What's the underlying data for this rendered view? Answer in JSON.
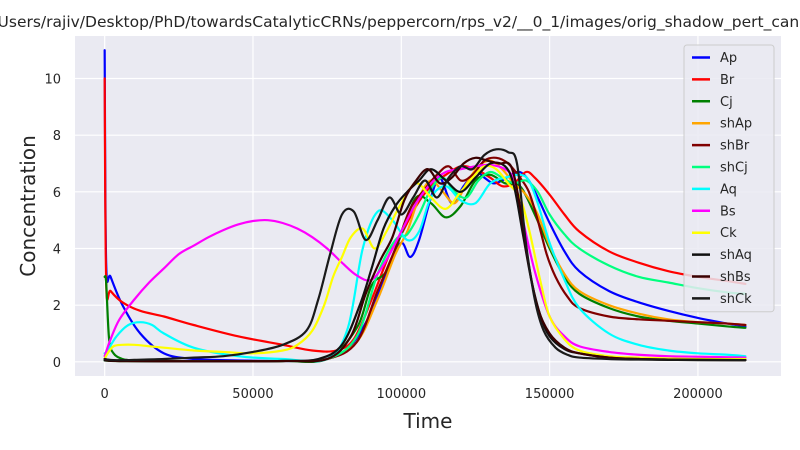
{
  "chart_data": {
    "type": "line",
    "title": "/Users/rajiv/Desktop/PhD/towardsCatalyticCRNs/peppercorn/rps_v2/__0_1/images/orig_shadow_pert_canc",
    "xlabel": "Time",
    "ylabel": "Concentration",
    "xlim": [
      -10000,
      228000
    ],
    "ylim": [
      -0.5,
      11.5
    ],
    "xticks": [
      0,
      50000,
      100000,
      150000,
      200000
    ],
    "xtick_labels": [
      "0",
      "50000",
      "100000",
      "150000",
      "200000"
    ],
    "yticks": [
      0,
      2,
      4,
      6,
      8,
      10
    ],
    "ytick_labels": [
      "0",
      "2",
      "4",
      "6",
      "8",
      "10"
    ],
    "grid": true,
    "legend_position": "top-right",
    "series": [
      {
        "name": "Ap",
        "color": "#0000ff",
        "x": [
          0,
          500,
          2000,
          6000,
          12000,
          20000,
          30000,
          45000,
          60000,
          70000,
          78000,
          84000,
          90000,
          96000,
          100000,
          103000,
          106000,
          110000,
          113000,
          117000,
          121000,
          125000,
          128000,
          131000,
          134000,
          137000,
          140000,
          143000,
          146000,
          150000,
          155000,
          160000,
          170000,
          180000,
          190000,
          200000,
          210000,
          216000
        ],
        "y": [
          11.0,
          3.5,
          3.0,
          2.0,
          1.0,
          0.3,
          0.1,
          0.05,
          0.03,
          0.05,
          0.2,
          0.7,
          1.8,
          3.4,
          4.2,
          3.7,
          4.3,
          5.8,
          6.5,
          5.6,
          6.2,
          6.7,
          6.5,
          6.3,
          6.4,
          6.6,
          6.7,
          6.4,
          5.8,
          4.9,
          3.9,
          3.2,
          2.5,
          2.1,
          1.8,
          1.55,
          1.35,
          1.25
        ]
      },
      {
        "name": "Br",
        "color": "#ff0000",
        "x": [
          0,
          500,
          2000,
          6000,
          12000,
          20000,
          30000,
          45000,
          60000,
          70000,
          78000,
          84000,
          90000,
          96000,
          100000,
          105000,
          110000,
          115000,
          120000,
          125000,
          130000,
          134000,
          138000,
          142000,
          145000,
          150000,
          155000,
          160000,
          170000,
          180000,
          190000,
          200000,
          210000,
          216000
        ],
        "y": [
          10.0,
          2.8,
          2.5,
          2.1,
          1.8,
          1.6,
          1.3,
          0.9,
          0.6,
          0.4,
          0.4,
          0.8,
          2.2,
          3.8,
          4.5,
          5.5,
          6.2,
          6.6,
          6.9,
          6.8,
          6.5,
          6.2,
          6.3,
          6.7,
          6.5,
          5.9,
          5.2,
          4.6,
          3.9,
          3.5,
          3.2,
          3.0,
          2.85,
          2.75
        ]
      },
      {
        "name": "Cj",
        "color": "#008000",
        "x": [
          0,
          500,
          1500,
          3000,
          6000,
          10000,
          20000,
          40000,
          60000,
          75000,
          85000,
          90000,
          95000,
          100000,
          105000,
          110000,
          115000,
          120000,
          125000,
          130000,
          135000,
          140000,
          145000,
          150000,
          155000,
          160000,
          170000,
          180000,
          190000,
          200000,
          210000,
          216000
        ],
        "y": [
          3.0,
          2.8,
          0.8,
          0.3,
          0.1,
          0.05,
          0.03,
          0.02,
          0.03,
          0.1,
          1.2,
          2.7,
          3.2,
          4.5,
          5.8,
          5.6,
          5.1,
          5.5,
          6.4,
          6.6,
          6.3,
          6.2,
          5.2,
          4.0,
          3.0,
          2.4,
          1.9,
          1.6,
          1.45,
          1.35,
          1.25,
          1.2
        ]
      },
      {
        "name": "shAp",
        "color": "#ffa500",
        "x": [
          0,
          1000,
          5000,
          20000,
          40000,
          60000,
          75000,
          85000,
          92000,
          98000,
          102000,
          106000,
          110000,
          114000,
          118000,
          122000,
          126000,
          130000,
          134000,
          138000,
          142000,
          146000,
          150000,
          155000,
          160000,
          170000,
          180000,
          190000,
          200000,
          210000,
          216000
        ],
        "y": [
          0.05,
          0.04,
          0.03,
          0.02,
          0.02,
          0.03,
          0.1,
          0.7,
          2.2,
          3.8,
          4.6,
          5.8,
          6.4,
          6.0,
          5.6,
          6.3,
          6.9,
          7.1,
          6.8,
          6.3,
          5.9,
          5.2,
          4.1,
          3.1,
          2.5,
          2.0,
          1.7,
          1.5,
          1.4,
          1.35,
          1.3
        ]
      },
      {
        "name": "shBr",
        "color": "#800000",
        "x": [
          0,
          1000,
          5000,
          20000,
          40000,
          60000,
          75000,
          85000,
          92000,
          98000,
          103000,
          108000,
          112000,
          116000,
          120000,
          124000,
          128000,
          132000,
          136000,
          140000,
          143000,
          146000,
          149000,
          152000,
          156000,
          160000,
          170000,
          180000,
          190000,
          200000,
          210000,
          216000
        ],
        "y": [
          0.1,
          0.05,
          0.03,
          0.02,
          0.02,
          0.03,
          0.1,
          0.7,
          2.5,
          4.0,
          5.4,
          6.1,
          6.6,
          6.9,
          6.4,
          6.6,
          7.1,
          7.2,
          7.0,
          6.5,
          6.0,
          5.0,
          3.8,
          3.0,
          2.3,
          1.9,
          1.6,
          1.5,
          1.45,
          1.4,
          1.35,
          1.3
        ]
      },
      {
        "name": "shCj",
        "color": "#00ff7f",
        "x": [
          0,
          1000,
          5000,
          20000,
          40000,
          60000,
          75000,
          85000,
          92000,
          98000,
          102000,
          106000,
          110000,
          114000,
          118000,
          122000,
          126000,
          130000,
          134000,
          138000,
          142000,
          146000,
          150000,
          155000,
          160000,
          170000,
          180000,
          190000,
          200000,
          210000,
          216000
        ],
        "y": [
          0.05,
          0.04,
          0.03,
          0.02,
          0.02,
          0.03,
          0.1,
          0.9,
          3.1,
          4.3,
          4.5,
          5.2,
          6.1,
          6.5,
          6.0,
          5.8,
          6.4,
          6.7,
          6.5,
          6.3,
          6.4,
          6.0,
          5.2,
          4.5,
          4.0,
          3.4,
          3.0,
          2.8,
          2.6,
          2.45,
          2.4
        ]
      },
      {
        "name": "Aq",
        "color": "#00ffff",
        "x": [
          0,
          1000,
          4000,
          8000,
          12000,
          16000,
          20000,
          30000,
          45000,
          60000,
          75000,
          82000,
          87000,
          92000,
          97000,
          102000,
          106000,
          110000,
          115000,
          120000,
          125000,
          130000,
          135000,
          140000,
          143000,
          146000,
          150000,
          155000,
          160000,
          170000,
          180000,
          190000,
          200000,
          210000,
          216000
        ],
        "y": [
          0.3,
          0.4,
          0.9,
          1.3,
          1.4,
          1.3,
          1.0,
          0.5,
          0.2,
          0.1,
          0.1,
          1.2,
          4.0,
          5.3,
          5.0,
          4.3,
          4.6,
          5.8,
          6.2,
          5.7,
          5.6,
          6.3,
          6.5,
          6.6,
          6.4,
          5.6,
          4.2,
          2.9,
          1.9,
          1.0,
          0.6,
          0.4,
          0.3,
          0.25,
          0.2
        ]
      },
      {
        "name": "Bs",
        "color": "#ff00ff",
        "x": [
          0,
          2000,
          5000,
          10000,
          15000,
          20000,
          25000,
          30000,
          35000,
          40000,
          45000,
          50000,
          55000,
          60000,
          65000,
          70000,
          75000,
          80000,
          85000,
          90000,
          95000,
          100000,
          105000,
          110000,
          115000,
          120000,
          125000,
          130000,
          135000,
          138000,
          141000,
          145000,
          150000,
          155000,
          160000,
          170000,
          180000,
          190000,
          200000,
          216000
        ],
        "y": [
          0.2,
          0.8,
          1.5,
          2.2,
          2.8,
          3.3,
          3.8,
          4.1,
          4.4,
          4.65,
          4.85,
          4.97,
          5.0,
          4.9,
          4.7,
          4.4,
          4.0,
          3.5,
          3.05,
          2.9,
          3.6,
          4.6,
          5.6,
          6.3,
          6.7,
          6.8,
          6.9,
          6.95,
          6.8,
          6.4,
          5.0,
          3.2,
          1.6,
          0.9,
          0.55,
          0.35,
          0.25,
          0.2,
          0.18,
          0.15
        ]
      },
      {
        "name": "Ck",
        "color": "#ffff00",
        "x": [
          0,
          1000,
          3000,
          6000,
          10000,
          15000,
          20000,
          30000,
          40000,
          50000,
          60000,
          65000,
          70000,
          74000,
          77000,
          80000,
          83000,
          87000,
          91000,
          95000,
          100000,
          105000,
          110000,
          115000,
          120000,
          124000,
          128000,
          132000,
          136000,
          140000,
          143000,
          147000,
          150000,
          155000,
          160000,
          170000,
          180000,
          190000,
          200000,
          216000
        ],
        "y": [
          0.1,
          0.3,
          0.55,
          0.6,
          0.6,
          0.55,
          0.5,
          0.4,
          0.35,
          0.3,
          0.4,
          0.6,
          1.1,
          2.0,
          3.0,
          3.7,
          4.4,
          4.7,
          4.0,
          4.6,
          5.6,
          6.3,
          5.8,
          5.4,
          6.0,
          6.5,
          6.9,
          6.8,
          6.3,
          5.8,
          4.7,
          2.8,
          1.6,
          0.8,
          0.4,
          0.2,
          0.15,
          0.12,
          0.1,
          0.1
        ]
      },
      {
        "name": "shAq",
        "color": "#111111",
        "x": [
          0,
          1000,
          5000,
          20000,
          40000,
          60000,
          72000,
          80000,
          86000,
          90000,
          94000,
          98000,
          102000,
          106000,
          110000,
          115000,
          120000,
          125000,
          130000,
          135000,
          138000,
          141000,
          144000,
          147000,
          150000,
          155000,
          160000,
          170000,
          180000,
          190000,
          200000,
          216000
        ],
        "y": [
          0.05,
          0.04,
          0.03,
          0.02,
          0.02,
          0.03,
          0.1,
          0.6,
          2.0,
          3.3,
          4.7,
          5.5,
          6.0,
          6.4,
          6.8,
          6.4,
          6.0,
          6.5,
          7.0,
          6.9,
          6.2,
          4.5,
          2.8,
          1.6,
          0.9,
          0.45,
          0.3,
          0.15,
          0.1,
          0.08,
          0.07,
          0.06
        ]
      },
      {
        "name": "shBs",
        "color": "#3a0000",
        "x": [
          0,
          1000,
          5000,
          20000,
          40000,
          60000,
          75000,
          83000,
          88000,
          93000,
          97000,
          101000,
          105000,
          109000,
          113000,
          117000,
          121000,
          125000,
          129000,
          133000,
          137000,
          140000,
          143000,
          146000,
          150000,
          155000,
          160000,
          170000,
          180000,
          190000,
          200000,
          216000
        ],
        "y": [
          0.1,
          0.05,
          0.03,
          0.02,
          0.02,
          0.03,
          0.1,
          0.9,
          2.4,
          3.6,
          4.4,
          5.7,
          6.4,
          6.8,
          6.3,
          6.5,
          7.0,
          7.2,
          7.1,
          7.0,
          6.9,
          5.5,
          3.4,
          1.9,
          1.0,
          0.5,
          0.3,
          0.15,
          0.1,
          0.08,
          0.07,
          0.06
        ]
      },
      {
        "name": "shCk",
        "color": "#1a1a1a",
        "x": [
          0,
          1000,
          3000,
          6000,
          10000,
          20000,
          30000,
          40000,
          50000,
          60000,
          68000,
          72000,
          76000,
          80000,
          84000,
          88000,
          92000,
          96000,
          100000,
          104000,
          108000,
          112000,
          116000,
          120000,
          124000,
          128000,
          132000,
          136000,
          139000,
          142000,
          145000,
          148000,
          152000,
          156000,
          160000,
          170000,
          180000,
          190000,
          200000,
          216000
        ],
        "y": [
          0.1,
          0.08,
          0.06,
          0.06,
          0.07,
          0.1,
          0.15,
          0.2,
          0.35,
          0.6,
          1.1,
          2.2,
          3.8,
          5.2,
          5.3,
          4.3,
          5.0,
          5.8,
          5.2,
          5.8,
          6.4,
          5.8,
          6.5,
          6.9,
          6.8,
          7.3,
          7.5,
          7.4,
          7.0,
          4.2,
          2.2,
          1.1,
          0.5,
          0.25,
          0.15,
          0.1,
          0.08,
          0.07,
          0.06,
          0.06
        ]
      }
    ]
  }
}
